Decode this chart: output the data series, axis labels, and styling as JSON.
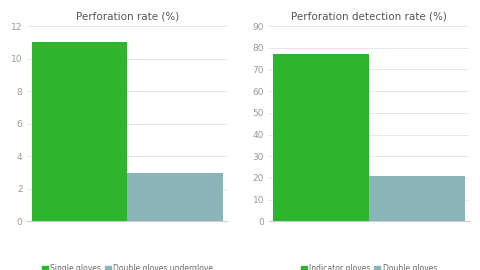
{
  "chart1": {
    "title": "Perforation rate (%)",
    "categories": [
      "Single gloves",
      "Double gloves underglove"
    ],
    "values": [
      11.0,
      3.0
    ],
    "colors": [
      "#2db52d",
      "#8ab4b8"
    ],
    "ylim": [
      0,
      12
    ],
    "yticks": [
      0,
      2,
      4,
      6,
      8,
      10,
      12
    ],
    "legend_labels": [
      "Single gloves",
      "Double gloves underglove"
    ]
  },
  "chart2": {
    "title": "Perforation detection rate (%)",
    "categories": [
      "Indicator gloves",
      "Double gloves"
    ],
    "values": [
      77.0,
      21.0
    ],
    "colors": [
      "#2db52d",
      "#8ab4b8"
    ],
    "ylim": [
      0,
      90
    ],
    "yticks": [
      0,
      10,
      20,
      30,
      40,
      50,
      60,
      70,
      80,
      90
    ],
    "legend_labels": [
      "Indicator gloves",
      "Double gloves"
    ]
  },
  "background_color": "#ffffff",
  "bar_width": 0.55,
  "title_fontsize": 7.5,
  "tick_fontsize": 6.5,
  "legend_fontsize": 5.5
}
